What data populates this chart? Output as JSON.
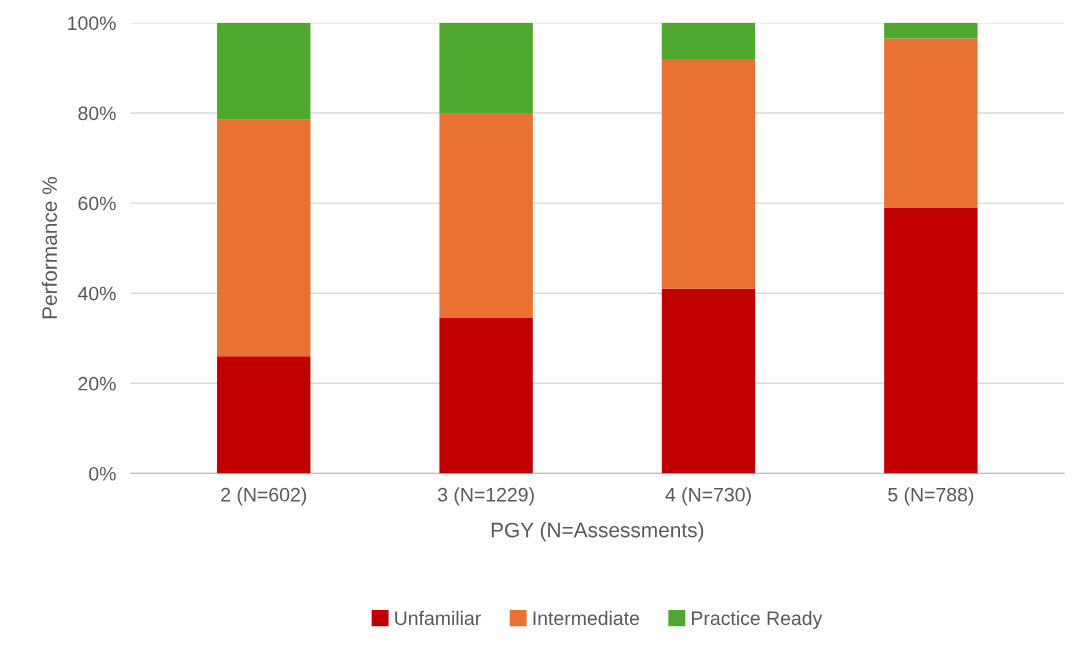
{
  "chart_data": {
    "type": "bar",
    "stacked": true,
    "xlabel": "PGY (N=Assessments)",
    "ylabel": "Performance %",
    "categories": [
      "2 (N=602)",
      "3 (N=1229)",
      "4 (N=730)",
      "5 (N=788)"
    ],
    "series": [
      {
        "name": "Unfamiliar",
        "color": "#c00000",
        "values": [
          26,
          34.5,
          41,
          59
        ]
      },
      {
        "name": "Intermediate",
        "color": "#e97132",
        "values": [
          52.5,
          45.5,
          51,
          37.5
        ]
      },
      {
        "name": "Practice Ready",
        "color": "#4ea72e",
        "values": [
          21.5,
          20,
          8,
          3.5
        ]
      }
    ],
    "ylim": [
      0,
      100
    ],
    "yticks": [
      {
        "value": 0,
        "label": "0%"
      },
      {
        "value": 20,
        "label": "20%"
      },
      {
        "value": 40,
        "label": "40%"
      },
      {
        "value": 60,
        "label": "60%"
      },
      {
        "value": 80,
        "label": "80%"
      },
      {
        "value": 100,
        "label": "100%"
      }
    ],
    "grid": "y",
    "legend": "bottom"
  }
}
